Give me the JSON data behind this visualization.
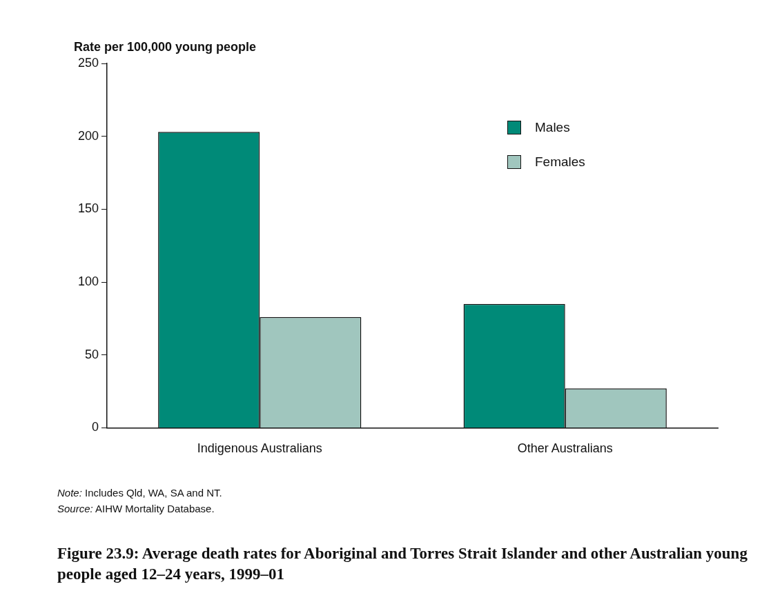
{
  "chart_data": {
    "type": "bar",
    "title": "Figure 23.9: Average death rates for Aboriginal and Torres Strait Islander and other Australian young people aged 12–24 years, 1999–01",
    "ylabel": "Rate per 100,000 young people",
    "categories": [
      "Indigenous Australians",
      "Other Australians"
    ],
    "series": [
      {
        "name": "Males",
        "color": "#008a78",
        "values": [
          203,
          85
        ]
      },
      {
        "name": "Females",
        "color": "#a0c6be",
        "values": [
          76,
          27
        ]
      }
    ],
    "ylim": [
      0,
      250
    ],
    "yticks": [
      0,
      50,
      100,
      150,
      200,
      250
    ],
    "legend": "top right",
    "annotations": [
      "Note: Includes Qld, WA, SA and NT.",
      "Source: AIHW Mortality Database."
    ]
  }
}
